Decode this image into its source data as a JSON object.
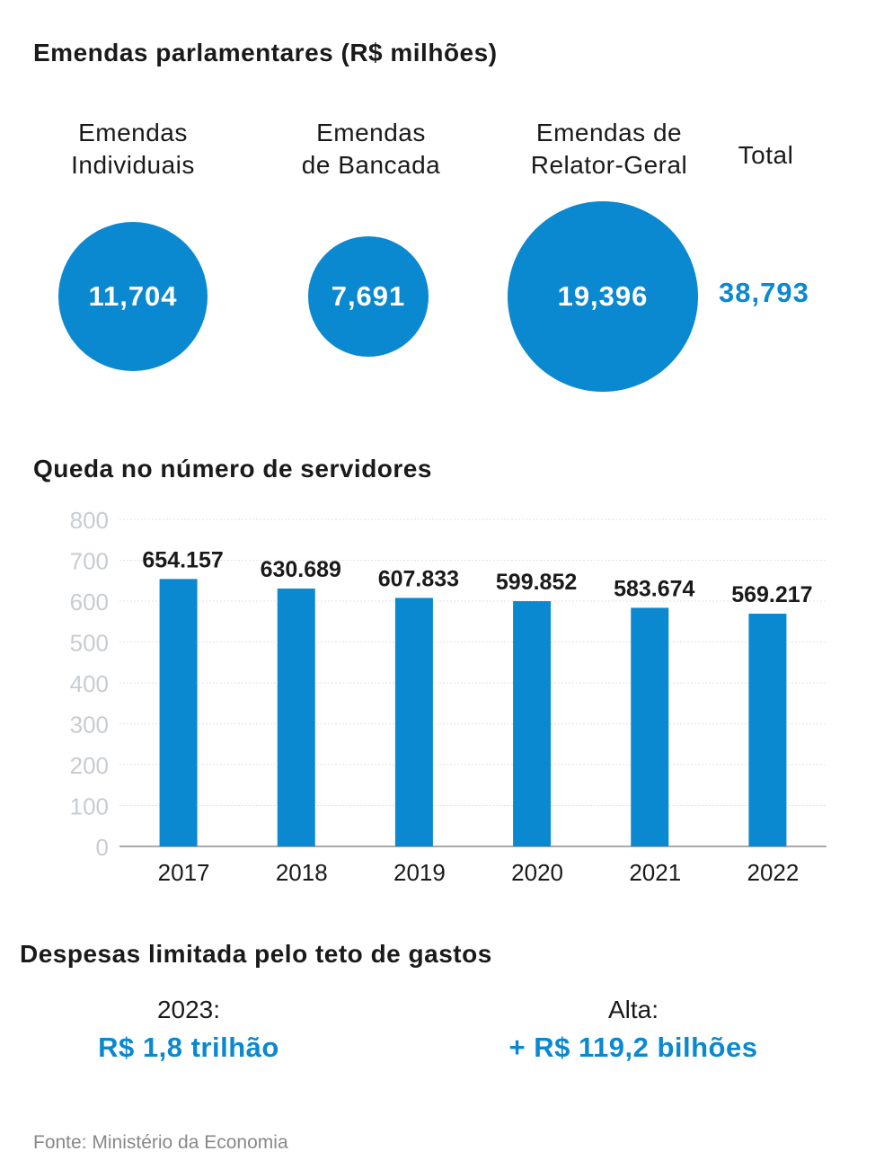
{
  "section1": {
    "title": "Emendas parlamentares (R$ milhões)",
    "items": [
      {
        "label_line1": "Emendas",
        "label_line2": "Individuais",
        "value": "11,704"
      },
      {
        "label_line1": "Emendas",
        "label_line2": "de Bancada",
        "value": "7,691"
      },
      {
        "label_line1": "Emendas de",
        "label_line2": "Relator-Geral",
        "value": "19,396"
      }
    ],
    "total_label": "Total",
    "total_value": "38,793",
    "accent": "#0a88d0"
  },
  "chart_data": {
    "type": "bar",
    "title": "Queda no número de servidores",
    "categories": [
      "2017",
      "2018",
      "2019",
      "2020",
      "2021",
      "2022"
    ],
    "values": [
      654.157,
      630.689,
      607.833,
      599.852,
      583.674,
      569.217
    ],
    "data_labels": [
      "654.157",
      "630.689",
      "607.833",
      "599.852",
      "583.674",
      "569.217"
    ],
    "ylim": [
      0,
      800
    ],
    "yticks": [
      "0",
      "100",
      "200",
      "300",
      "400",
      "500",
      "600",
      "700",
      "800"
    ],
    "grid": true,
    "bar_color": "#0a88d0"
  },
  "section3": {
    "title": "Despesas limitada pelo teto de gastos",
    "left_label": "2023:",
    "left_value": "R$ 1,8 trilhão",
    "right_label": "Alta:",
    "right_value": "+ R$ 119,2 bilhões"
  },
  "source": "Fonte: Ministério da Economia"
}
